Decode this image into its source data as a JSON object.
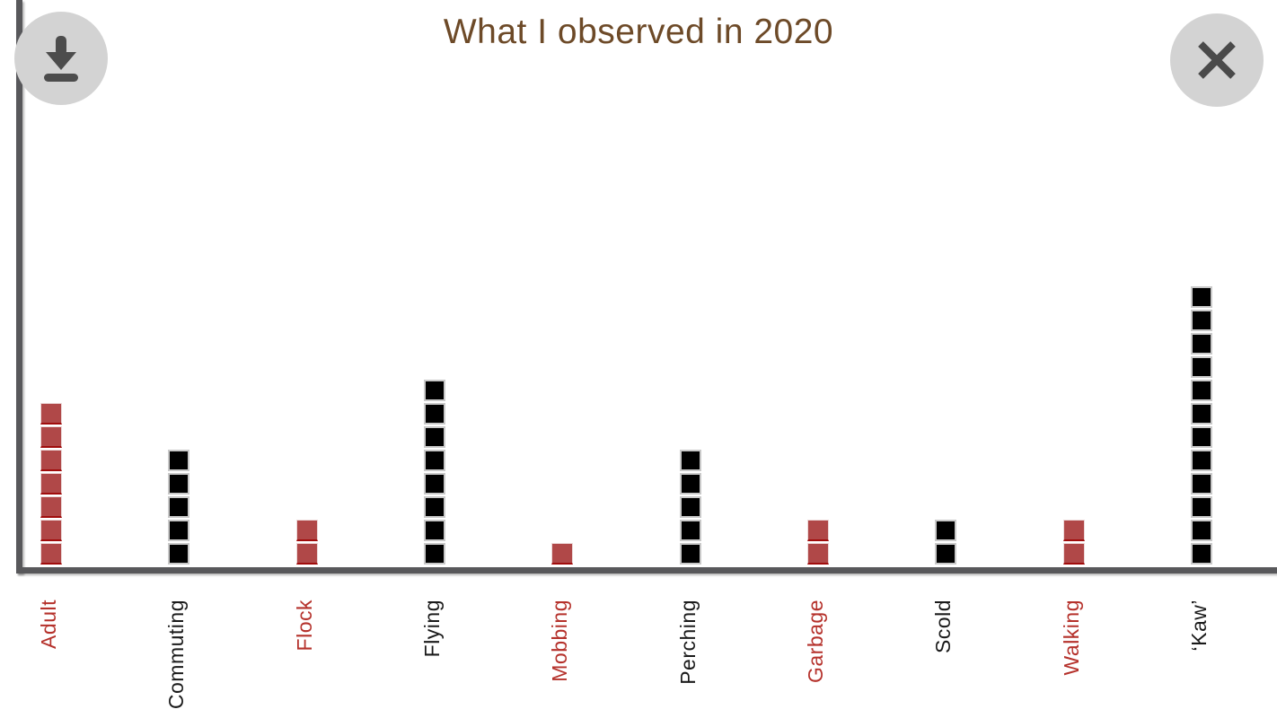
{
  "title": "What I observed in 2020",
  "toolbar": {
    "download_button": "download",
    "close_button": "close"
  },
  "colors": {
    "title_text": "#6d4a28",
    "axis": "#58585b",
    "button_circle": "#d3d3d3",
    "button_glyph": "#4c4c4c"
  },
  "chart_data": {
    "type": "bar",
    "style": "stacked unit squares (waffle bars)",
    "title": "What I observed in 2020",
    "categories": [
      "Adult",
      "Commuting",
      "Flock",
      "Flying",
      "Mobbing",
      "Perching",
      "Garbage",
      "Scold",
      "Walking",
      "‘Kaw’"
    ],
    "values": [
      7,
      5,
      2,
      8,
      1,
      5,
      2,
      2,
      2,
      12
    ],
    "bar_colors": [
      "red",
      "black",
      "red",
      "black",
      "red",
      "black",
      "red",
      "black",
      "red",
      "black"
    ],
    "square_colors": {
      "red": "#b04848",
      "black": "#000000"
    },
    "label_colors": {
      "red": "#b5312b",
      "black": "#1a1a1a"
    },
    "xlabel": "",
    "ylabel": "",
    "ylim": [
      0,
      12
    ],
    "grid": false,
    "legend": null,
    "y_ticks_shown": false
  }
}
